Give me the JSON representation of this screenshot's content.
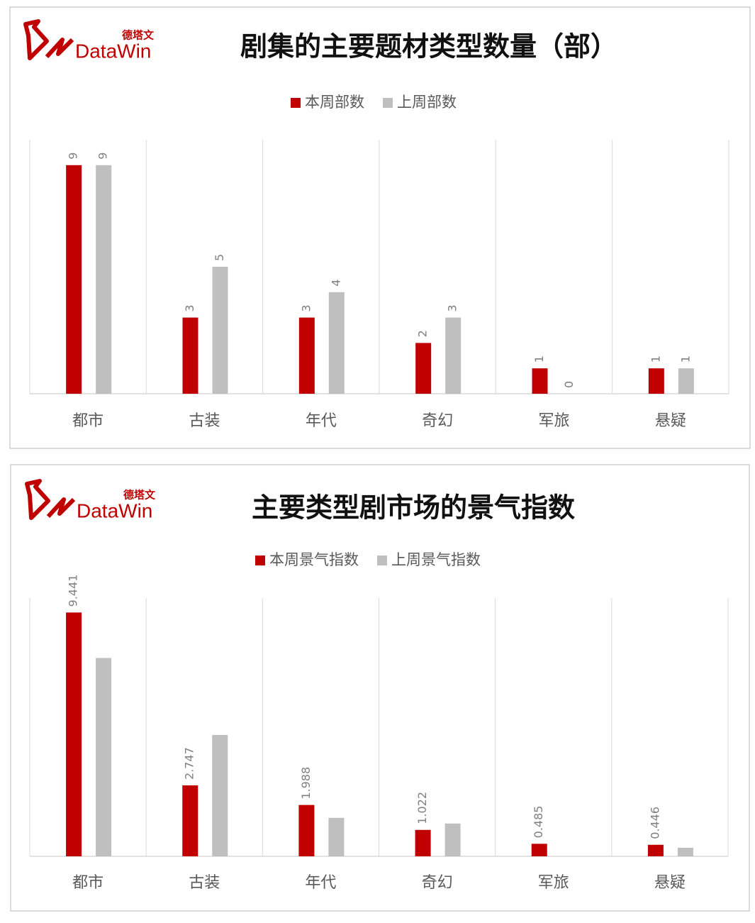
{
  "chart_data": [
    {
      "type": "bar",
      "title": "剧集的主要题材类型数量（部）",
      "logo_text": "DataWin",
      "logo_subtext": "德塔文",
      "categories": [
        "都市",
        "古装",
        "年代",
        "奇幻",
        "军旅",
        "悬疑"
      ],
      "series": [
        {
          "name": "本周部数",
          "color": "#c00000",
          "values": [
            9,
            3,
            3,
            2,
            1,
            1
          ],
          "show_value_labels": true
        },
        {
          "name": "上周部数",
          "color": "#bfbfbf",
          "values": [
            9,
            5,
            4,
            3,
            0,
            1
          ],
          "show_value_labels": true
        }
      ],
      "ylim": [
        0,
        10
      ],
      "vertical_grid": true,
      "legend": "top"
    },
    {
      "type": "bar",
      "title": "主要类型剧市场的景气指数",
      "logo_text": "DataWin",
      "logo_subtext": "德塔文",
      "categories": [
        "都市",
        "古装",
        "年代",
        "奇幻",
        "军旅",
        "悬疑"
      ],
      "series": [
        {
          "name": "本周景气指数",
          "color": "#c00000",
          "values": [
            9.441,
            2.747,
            1.988,
            1.022,
            0.485,
            0.446
          ],
          "show_value_labels": true
        },
        {
          "name": "上周景气指数",
          "color": "#bfbfbf",
          "values": [
            7.68,
            4.7,
            1.49,
            1.27,
            0,
            0.33
          ],
          "show_value_labels": false
        }
      ],
      "ylim": [
        0,
        10
      ],
      "vertical_grid": true,
      "legend": "top"
    }
  ]
}
